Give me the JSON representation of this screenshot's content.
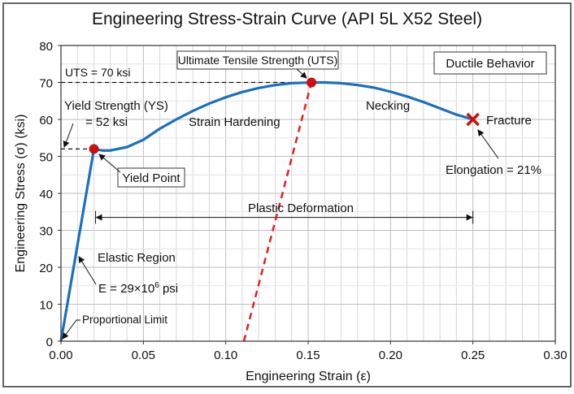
{
  "chart_data": {
    "type": "line",
    "title": "Engineering Stress-Strain Curve (API 5L X52 Steel)",
    "xlabel": "Engineering Strain (ε)",
    "ylabel": "Engineering Stress (σ) (ksi)",
    "xlim": [
      0,
      0.3
    ],
    "ylim": [
      0,
      80
    ],
    "grid": true,
    "x_ticks": [
      "0.00",
      "0.05",
      "0.10",
      "0.15",
      "0.20",
      "0.25",
      "0.30"
    ],
    "y_ticks": [
      "0",
      "10",
      "20",
      "30",
      "40",
      "50",
      "60",
      "70",
      "80"
    ],
    "series": [
      {
        "color": "#1a6fc0",
        "points": [
          [
            0,
            0
          ],
          [
            0.02,
            52
          ],
          [
            0.025,
            51.6
          ],
          [
            0.03,
            51.6
          ],
          [
            0.04,
            52.5
          ],
          [
            0.05,
            54.5
          ],
          [
            0.06,
            57.5
          ],
          [
            0.07,
            60
          ],
          [
            0.08,
            62.3
          ],
          [
            0.09,
            64.3
          ],
          [
            0.1,
            66
          ],
          [
            0.11,
            67.4
          ],
          [
            0.12,
            68.5
          ],
          [
            0.13,
            69.3
          ],
          [
            0.14,
            69.8
          ],
          [
            0.152,
            70
          ],
          [
            0.16,
            70
          ],
          [
            0.17,
            69.8
          ],
          [
            0.18,
            69.3
          ],
          [
            0.19,
            68.6
          ],
          [
            0.2,
            67.5
          ],
          [
            0.21,
            66.2
          ],
          [
            0.22,
            64.7
          ],
          [
            0.23,
            63
          ],
          [
            0.24,
            61.3
          ],
          [
            0.25,
            60
          ]
        ]
      },
      {
        "color": "#e02020",
        "dashed": true,
        "points": [
          [
            0.111,
            0
          ],
          [
            0.152,
            70
          ]
        ]
      }
    ],
    "markers": {
      "yield_point": [
        0.02,
        52
      ],
      "uts_point": [
        0.152,
        70
      ],
      "fracture_point": [
        0.25,
        60
      ],
      "marker_color": "#c81010"
    },
    "reference_lines": {
      "uts_stress": 70,
      "yield_stress": 52
    },
    "plastic_range": [
      0.021,
      0.25,
      33.5
    ],
    "annotations": {
      "uts_value": "UTS = 70 ksi",
      "uts_label": "Ultimate Tensile Strength (UTS)",
      "ductile": "Ductile Behavior",
      "ys_line1": "Yield Strength (YS)",
      "ys_line2": "= 52 ksi",
      "strain_hardening": "Strain Hardening",
      "necking": "Necking",
      "fracture": "Fracture",
      "yield_point": "Yield Point",
      "elongation": "Elongation = 21%",
      "plastic": "Plastic Deformation",
      "elastic": "Elastic Region",
      "modulus": "E = 29×10",
      "modulus_exp": "6",
      "modulus_unit": " psi",
      "proportional": "Proportional Limit"
    }
  }
}
